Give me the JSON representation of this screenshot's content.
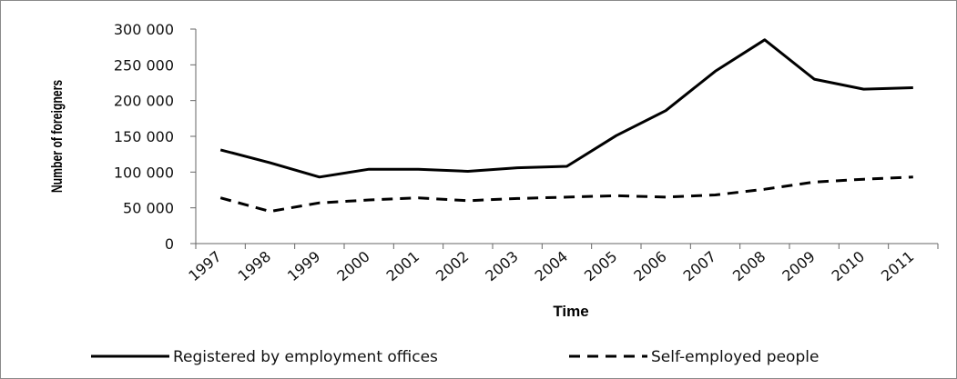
{
  "chart_data": {
    "type": "line",
    "title": "",
    "xlabel": "Time",
    "ylabel": "Number of foreigners",
    "ylim": [
      0,
      300000
    ],
    "yticks": [
      0,
      50000,
      100000,
      150000,
      200000,
      250000,
      300000
    ],
    "ytick_labels": [
      "0",
      "50 000",
      "100 000",
      "150 000",
      "200 000",
      "250 000",
      "300 000"
    ],
    "categories": [
      "1997",
      "1998",
      "1999",
      "2000",
      "2001",
      "2002",
      "2003",
      "2004",
      "2005",
      "2006",
      "2007",
      "2008",
      "2009",
      "2010",
      "2011"
    ],
    "series": [
      {
        "name": "Registered by employment offices",
        "style": "solid",
        "color": "#000000",
        "values": [
          131000,
          113000,
          93000,
          104000,
          104000,
          101000,
          106000,
          108000,
          151000,
          186000,
          241000,
          285000,
          230000,
          216000,
          218000
        ]
      },
      {
        "name": "Self-employed people",
        "style": "dashed",
        "color": "#000000",
        "values": [
          64000,
          45000,
          57000,
          61000,
          64000,
          60000,
          63000,
          65000,
          67000,
          65000,
          68000,
          76000,
          86000,
          90000,
          93000
        ]
      }
    ],
    "grid": false,
    "legend_position": "bottom"
  }
}
